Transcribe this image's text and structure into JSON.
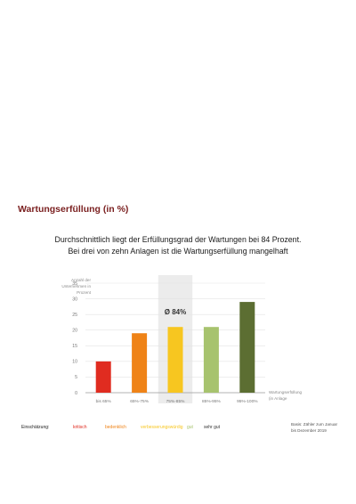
{
  "heading": "Wartungserfüllung (in %)",
  "subtitle_lines": [
    "Durchschnittlich liegt der Erfüllungsgrad der Wartungen bei 84 Prozent.",
    "Bei drei von zehn Anlagen ist die Wartungserfüllung mangelhaft"
  ],
  "ylabel_lines": [
    "Anzahl der",
    "Unternehmen in",
    "Prozent"
  ],
  "xlabel_lines": [
    "Wartungserfüllung",
    "(in Anlage"
  ],
  "source_lines": [
    "Basis: Zähler zum Januar",
    "bis Dezember 2019"
  ],
  "average_label": "Ø 84%",
  "legend": {
    "title": "Einschätzung:",
    "items": [
      {
        "label": "kritisch",
        "color": "#e02c20"
      },
      {
        "label": "bedenklich",
        "color": "#ef8317"
      },
      {
        "label": "verbesserungswürdig",
        "color": "#f7c620"
      },
      {
        "label": "gut",
        "color": "#a7c36e"
      },
      {
        "label": "sehr gut",
        "color": "#5c6e32"
      }
    ]
  },
  "colors": {
    "axis": "#9a9a9a",
    "grid": "#e3e3e3",
    "highlight_band": "#ececec",
    "heading": "#7a1f1f"
  },
  "chart_data": {
    "type": "bar",
    "title": "",
    "categories": [
      "bis 65%",
      "65%-75%",
      "75%-85%",
      "85%-95%",
      "95%-100%"
    ],
    "values": [
      10,
      19,
      21,
      21,
      29
    ],
    "bar_colors": [
      "#e02c20",
      "#ef8317",
      "#f7c620",
      "#a7c36e",
      "#5c6e32"
    ],
    "highlight_category": "75%-85%",
    "yticks": [
      0,
      5,
      10,
      15,
      20,
      25,
      30,
      35
    ],
    "ylim": [
      0,
      35
    ],
    "grid": true,
    "xlabel": "Wartungserfüllung",
    "ylabel": "Anzahl der Unternehmen in Prozent"
  }
}
